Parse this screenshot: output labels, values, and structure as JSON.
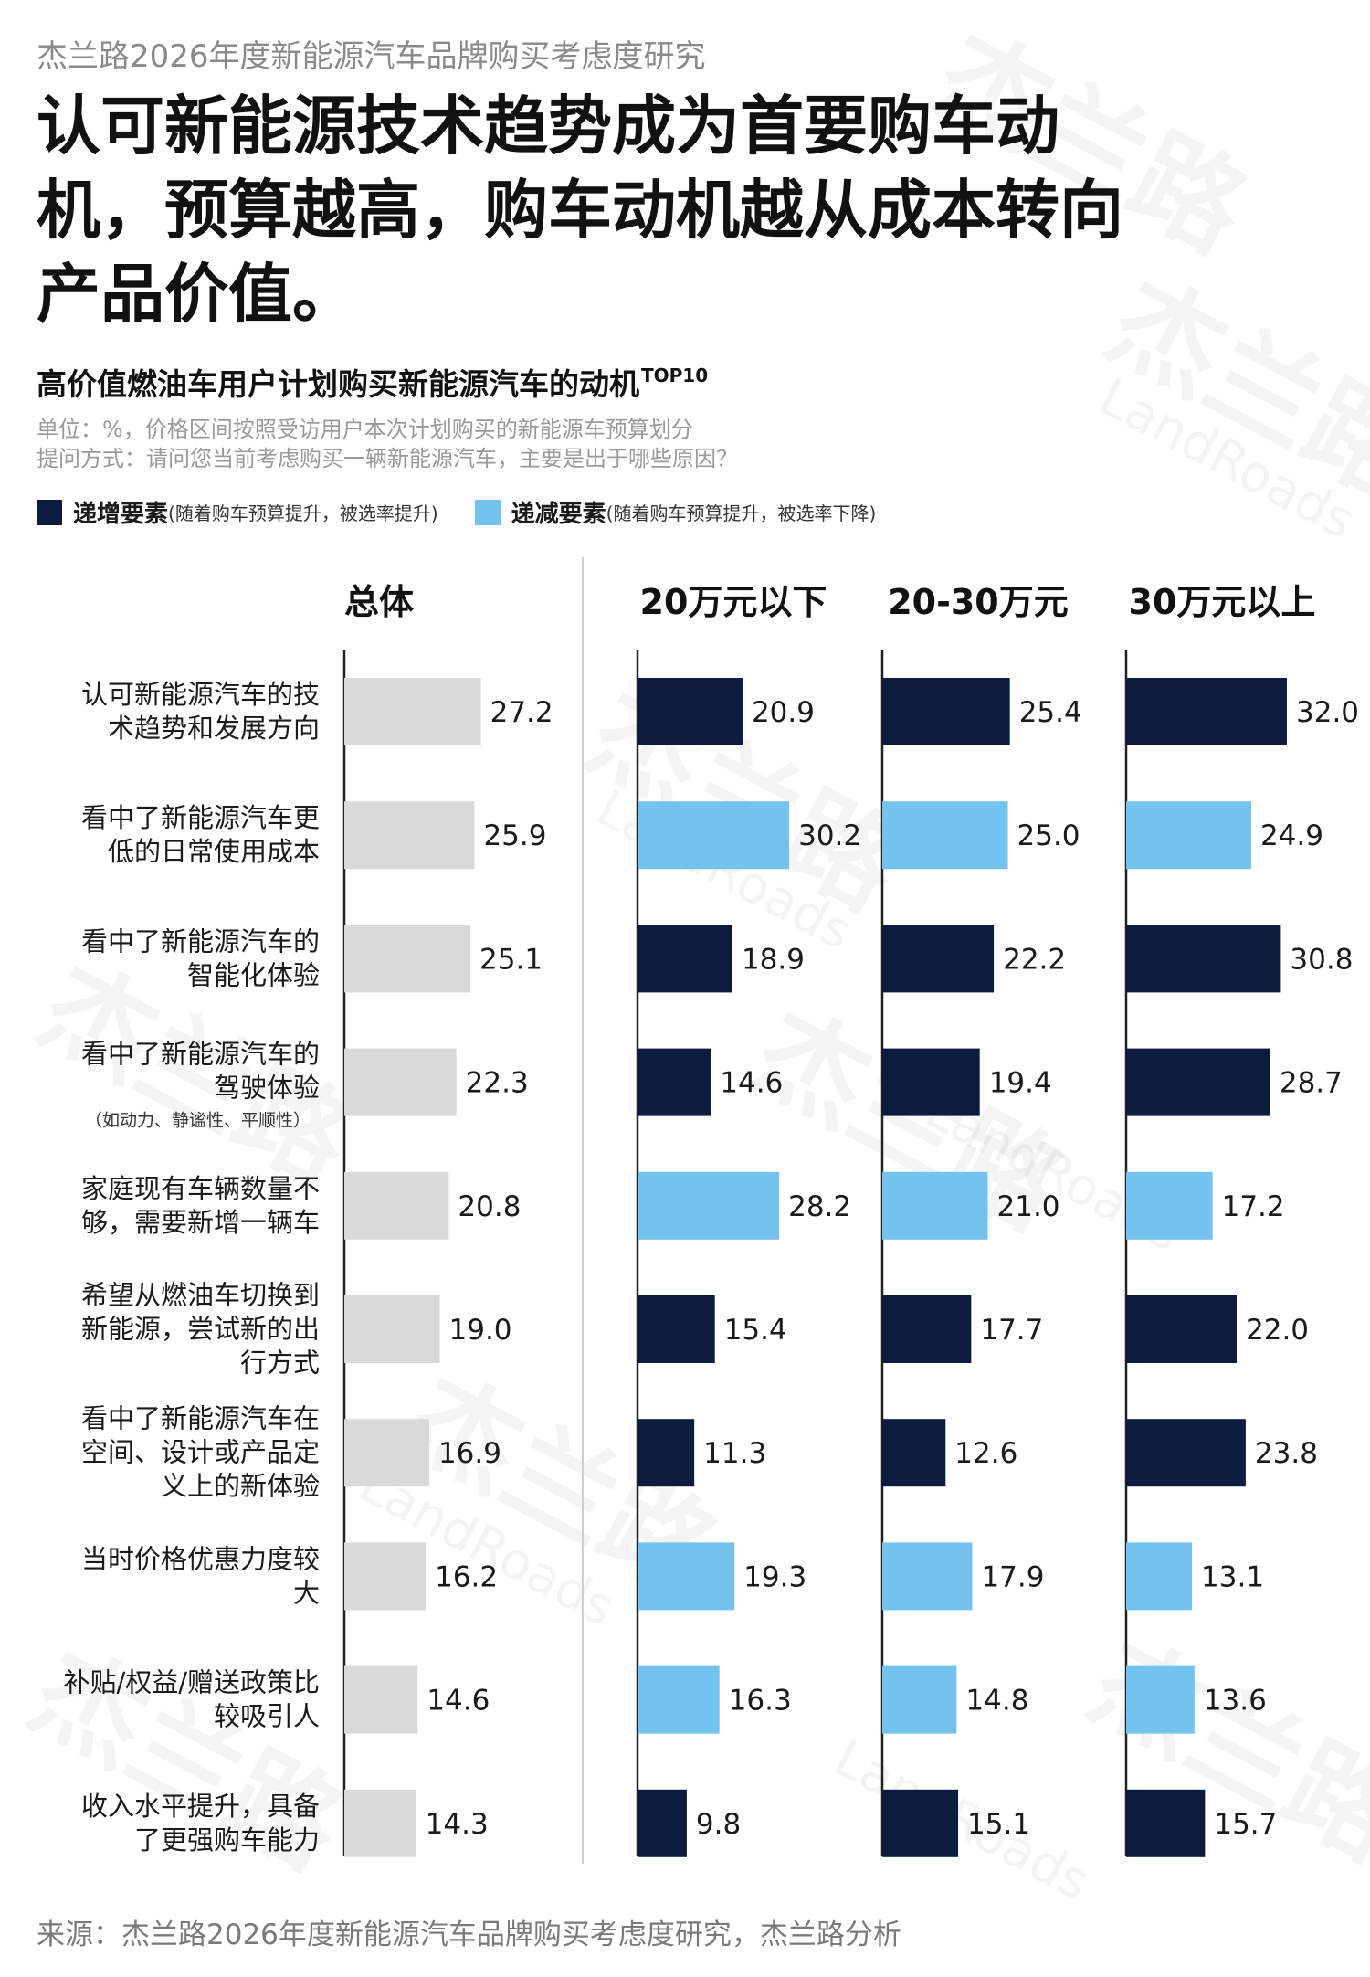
{
  "header": {
    "supertitle": "杰兰路2026年度新能源汽车品牌购买考虑度研究",
    "headline": "认可新能源技术趋势成为首要购车动机，预算越高，购车动机越从成本转向产品价值。"
  },
  "chart_header": {
    "title": "高价值燃油车用户计划购买新能源汽车的动机",
    "title_sup": "TOP10",
    "unit_note": "单位：%，价格区间按照受访用户本次计划购买的新能源车预算划分",
    "question_note": "提问方式：请问您当前考虑购买一辆新能源汽车，主要是出于哪些原因？"
  },
  "legend": {
    "increasing": {
      "name": "递增要素",
      "desc": "(随着购车预算提升，被选率提升)",
      "color": "#0d1b3e"
    },
    "decreasing": {
      "name": "递减要素",
      "desc": "(随着购车预算提升，被选率下降)",
      "color": "#74c3ee"
    }
  },
  "colors": {
    "overall": "#d9d9d9",
    "increasing": "#0d1b3e",
    "decreasing": "#74c3ee",
    "axis": "#222222"
  },
  "chart_data": {
    "type": "bar",
    "orientation": "horizontal",
    "categories": [
      {
        "lines": [
          "认可新能源汽车的技",
          "术趋势和发展方向"
        ]
      },
      {
        "lines": [
          "看中了新能源汽车更",
          "低的日常使用成本"
        ]
      },
      {
        "lines": [
          "看中了新能源汽车的",
          "智能化体验"
        ]
      },
      {
        "lines": [
          "看中了新能源汽车的",
          "驾驶体验"
        ],
        "note": "（如动力、静谧性、平顺性）"
      },
      {
        "lines": [
          "家庭现有车辆数量不",
          "够，需要新增一辆车"
        ]
      },
      {
        "lines": [
          "希望从燃油车切换到",
          "新能源，尝试新的出",
          "行方式"
        ]
      },
      {
        "lines": [
          "看中了新能源汽车在",
          "空间、设计或产品定",
          "义上的新体验"
        ]
      },
      {
        "lines": [
          "当时价格优惠力度较",
          "大"
        ]
      },
      {
        "lines": [
          "补贴/权益/赠送政策比",
          "较吸引人"
        ]
      },
      {
        "lines": [
          "收入水平提升，具备",
          "了更强购车能力"
        ]
      }
    ],
    "trend": [
      "increasing",
      "decreasing",
      "increasing",
      "increasing",
      "decreasing",
      "increasing",
      "increasing",
      "decreasing",
      "decreasing",
      "increasing"
    ],
    "series": [
      {
        "name": "总体",
        "values": [
          27.2,
          25.9,
          25.1,
          22.3,
          20.8,
          19.0,
          16.9,
          16.2,
          14.6,
          14.3
        ]
      },
      {
        "name": "20万元以下",
        "values": [
          20.9,
          30.2,
          18.9,
          14.6,
          28.2,
          15.4,
          11.3,
          19.3,
          16.3,
          9.8
        ]
      },
      {
        "name": "20-30万元",
        "values": [
          25.4,
          25.0,
          22.2,
          19.4,
          21.0,
          17.7,
          12.6,
          17.9,
          14.8,
          15.1
        ]
      },
      {
        "name": "30万元以上",
        "values": [
          32.0,
          24.9,
          30.8,
          28.7,
          17.2,
          22.0,
          23.8,
          13.1,
          13.6,
          15.7
        ]
      }
    ]
  },
  "source": "来源：杰兰路2026年度新能源汽车品牌购买考虑度研究，杰兰路分析",
  "watermark": {
    "cn": "杰兰路",
    "en": "LandRoads"
  }
}
